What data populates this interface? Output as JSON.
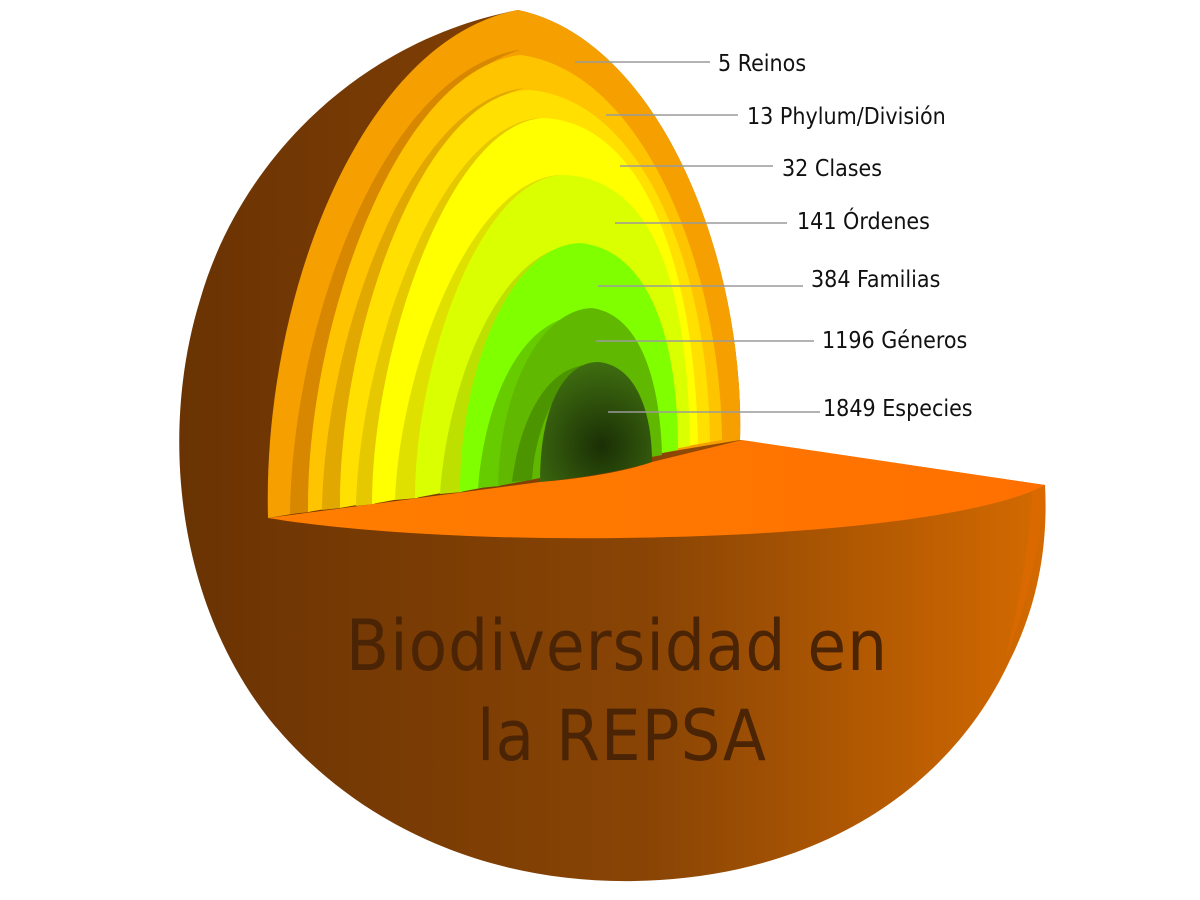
{
  "title": {
    "line1": "Biodiversidad en",
    "line2": "la REPSA"
  },
  "layers": [
    {
      "label": "5 Reinos",
      "color": "#f5a000"
    },
    {
      "label": "13 Phylum/División",
      "color": "#ffc400"
    },
    {
      "label": "32 Clases",
      "color": "#ffe000"
    },
    {
      "label": "141 Órdenes",
      "color": "#ffff00"
    },
    {
      "label": "384 Familias",
      "color": "#d9ff00"
    },
    {
      "label": "1196 Géneros",
      "color": "#80ff00"
    },
    {
      "label": "1849 Especies",
      "color": "#60b800"
    }
  ],
  "colors": {
    "shell_dark": "#7a3d05",
    "shell_light": "#c66200",
    "cut_face": "#ff7a00",
    "core": "#1e3a06",
    "leader_line": "#9a9a9a"
  }
}
